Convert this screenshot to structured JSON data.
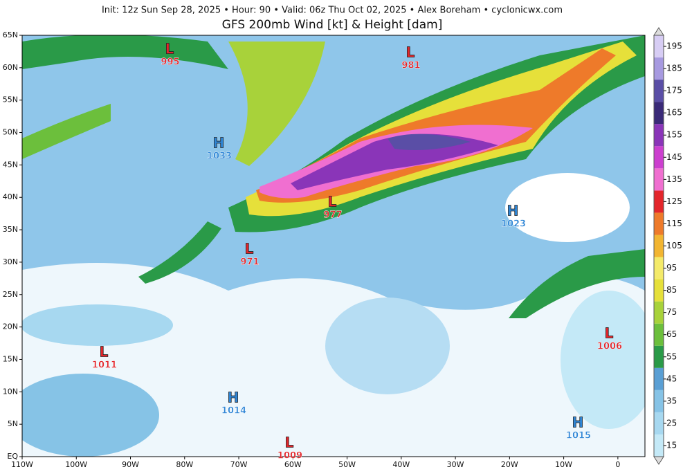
{
  "header": {
    "info": "Init: 12z Sun Sep 28, 2025  •  Hour: 90  •  Valid: 06z Thu Oct 02, 2025  •  Alex Boreham  •  cyclonicwx.com",
    "title": "GFS 200mb Wind [kt] & Height [dam]"
  },
  "map": {
    "lat_labels": [
      "65N",
      "60N",
      "55N",
      "50N",
      "45N",
      "40N",
      "35N",
      "30N",
      "25N",
      "20N",
      "15N",
      "10N",
      "5N",
      "EQ"
    ],
    "lon_labels": [
      "110W",
      "100W",
      "90W",
      "80W",
      "70W",
      "60W",
      "50W",
      "40W",
      "30W",
      "20W",
      "10W",
      "0"
    ],
    "centers": [
      {
        "type": "L",
        "value": 995
      },
      {
        "type": "L",
        "value": 981
      },
      {
        "type": "H",
        "value": 1033
      },
      {
        "type": "L",
        "value": 977
      },
      {
        "type": "H",
        "value": 1023
      },
      {
        "type": "L",
        "value": 971
      },
      {
        "type": "L",
        "value": 1006
      },
      {
        "type": "L",
        "value": 1011
      },
      {
        "type": "H",
        "value": 1014
      },
      {
        "type": "H",
        "value": 1015
      },
      {
        "type": "L",
        "value": 1009
      }
    ]
  },
  "colorbar": {
    "lim": [
      10,
      200
    ],
    "ticks": [
      15,
      25,
      35,
      45,
      55,
      65,
      75,
      85,
      95,
      105,
      115,
      125,
      135,
      145,
      155,
      165,
      175,
      185,
      195
    ],
    "colors": [
      "#c4e9f7",
      "#a7d8f0",
      "#86c3e6",
      "#5a9fd4",
      "#2a9a48",
      "#6cbf3c",
      "#a8d23a",
      "#e6e03a",
      "#f4ea6a",
      "#f2b531",
      "#ee7a2a",
      "#e3262b",
      "#f06fd0",
      "#cc3fcf",
      "#8a35b8",
      "#3a2a78",
      "#5a4ea6",
      "#a79ae0",
      "#d7cdf4"
    ]
  }
}
